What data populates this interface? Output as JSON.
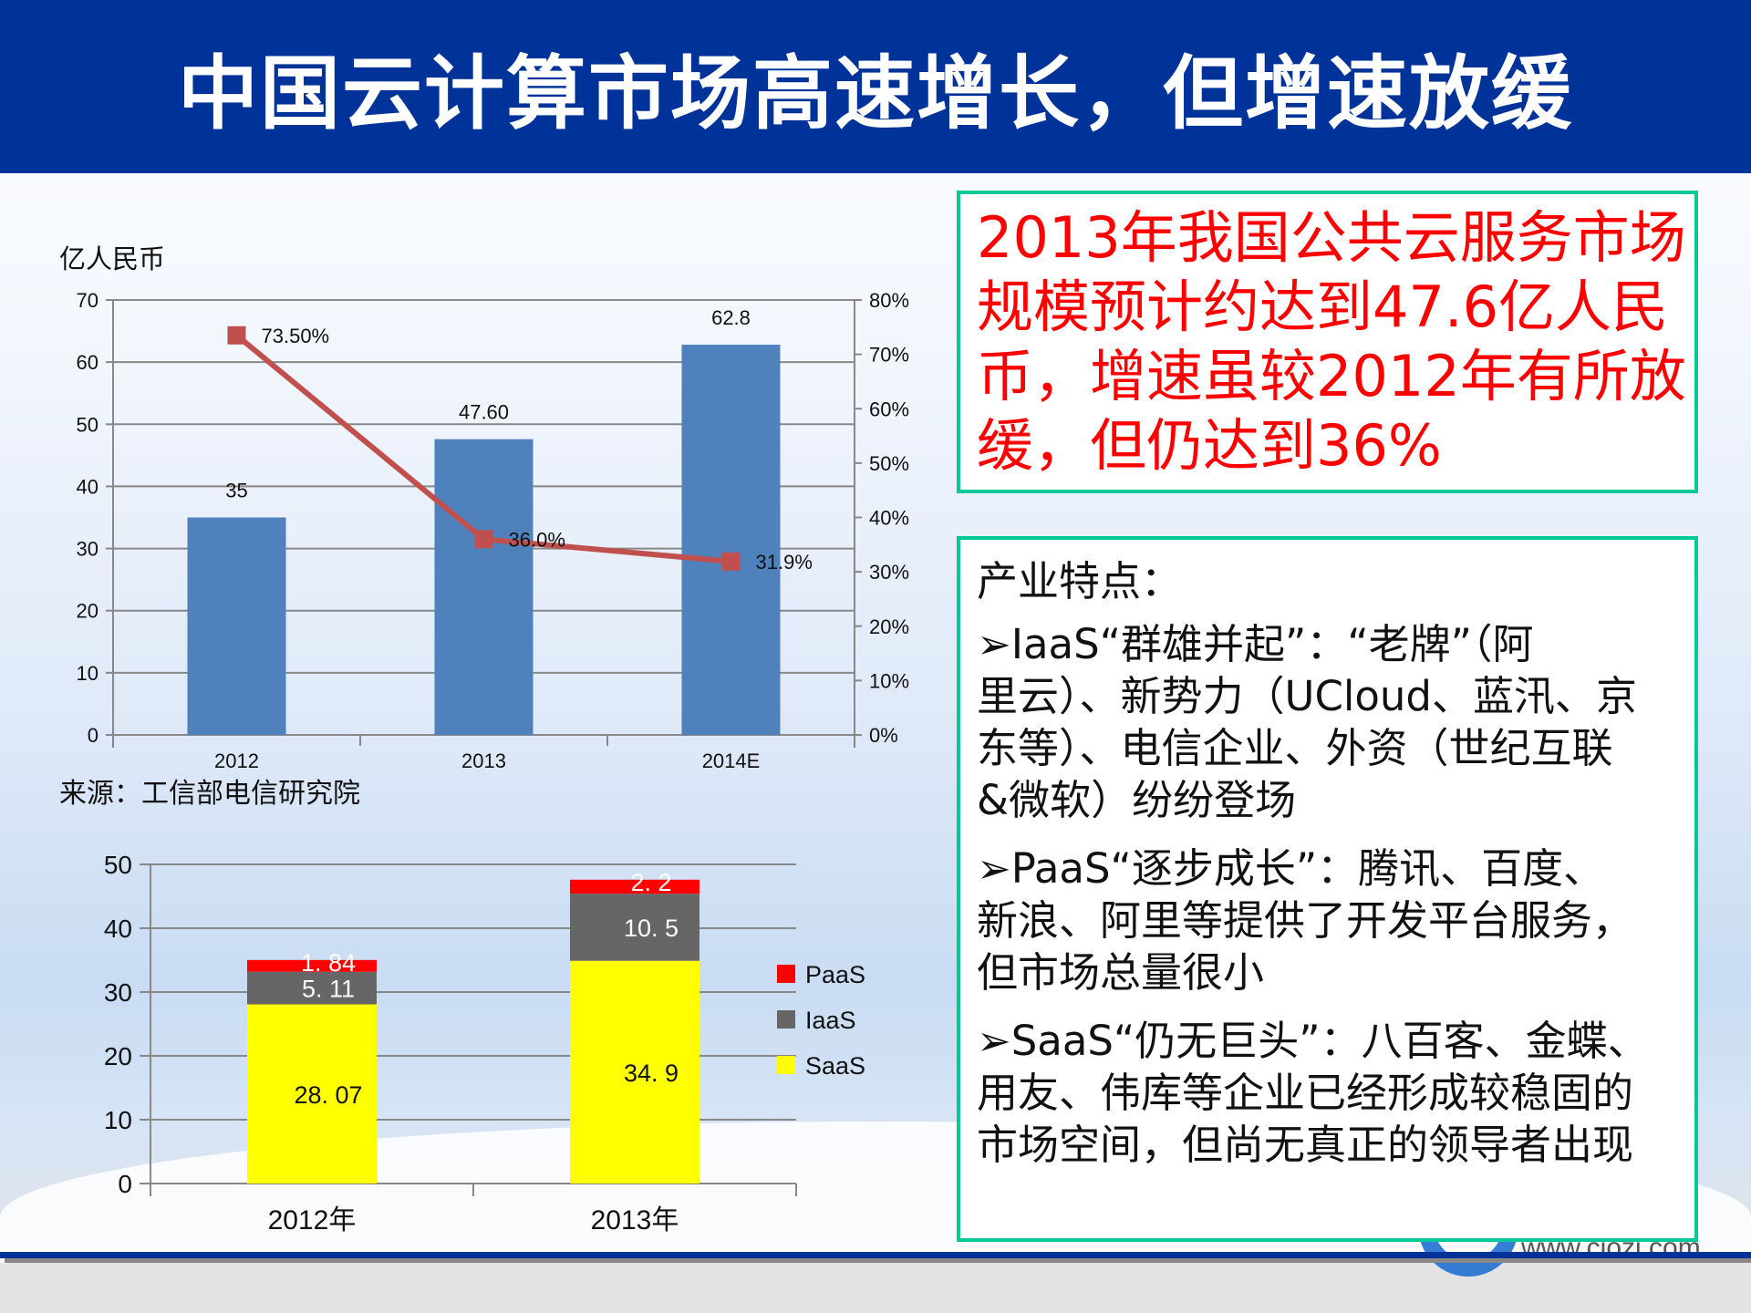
{
  "header": {
    "title": "中国云计算市场高速增长，但增速放缓"
  },
  "colors": {
    "header": "#003399",
    "bar": "#4f81bd",
    "line": "#c0504d",
    "saas": "#ffff00",
    "iaas": "#666666",
    "paas": "#ff0000",
    "box_border": "#00c896",
    "highlight_text": "#ff0000"
  },
  "chart_data": [
    {
      "type": "bar+line",
      "unit_label": "亿人民币",
      "categories": [
        "2012",
        "2013",
        "2014E"
      ],
      "series": [
        {
          "type": "bar",
          "axis": "left",
          "values": [
            35,
            47.6,
            62.8
          ],
          "labels": [
            "35",
            "47.60",
            "62.8"
          ]
        },
        {
          "type": "line",
          "axis": "right",
          "values": [
            73.5,
            36.0,
            31.9
          ],
          "labels": [
            "73.50%",
            "36.0%",
            "31.9%"
          ]
        }
      ],
      "ylim": [
        0,
        70
      ],
      "yticks": [
        "0",
        "10",
        "20",
        "30",
        "40",
        "50",
        "60",
        "70"
      ],
      "y2lim": [
        0,
        80
      ],
      "y2ticks": [
        "0%",
        "10%",
        "20%",
        "30%",
        "40%",
        "50%",
        "60%",
        "70%",
        "80%"
      ],
      "grid": true,
      "source": "来源：工信部电信研究院"
    },
    {
      "type": "stacked-bar",
      "categories": [
        "2012年",
        "2013年"
      ],
      "series": [
        {
          "name": "SaaS",
          "values": [
            28.07,
            34.9
          ],
          "labels": [
            "28. 07",
            "34. 9"
          ]
        },
        {
          "name": "IaaS",
          "values": [
            5.11,
            10.5
          ],
          "labels": [
            "5. 11",
            "10. 5"
          ]
        },
        {
          "name": "PaaS",
          "values": [
            1.84,
            2.2
          ],
          "labels": [
            "1. 84",
            "2. 2"
          ]
        }
      ],
      "legend_order": [
        "PaaS",
        "IaaS",
        "SaaS"
      ],
      "legend": "right",
      "ylim": [
        0,
        50
      ],
      "yticks": [
        "0",
        "10",
        "20",
        "30",
        "40",
        "50"
      ],
      "grid": true
    }
  ],
  "highlight_box": {
    "lines": [
      "2013年我国公共云服务市场",
      "规模预计约达到47.6亿人民",
      "币，增速虽较2012年有所放",
      "缓，但仍达到36%"
    ]
  },
  "features_box": {
    "heading": "产业特点：",
    "items": [
      {
        "lines": [
          "➢IaaS“群雄并起”：“老牌”（阿",
          "里云）、新势力（UCloud、蓝汛、京",
          "东等）、电信企业、外资（世纪互联",
          "&微软）纷纷登场"
        ]
      },
      {
        "lines": [
          "➢PaaS“逐步成长”：腾讯、百度、",
          "新浪、阿里等提供了开发平台服务，",
          "但市场总量很小"
        ]
      },
      {
        "lines": [
          "➢SaaS“仍无巨头”：八百客、金蝶、",
          "用友、伟库等企业已经形成较稳固的",
          "市场空间，但尚无真正的领导者出现"
        ]
      }
    ]
  },
  "logo": {
    "text": "www.ciozi.com"
  }
}
